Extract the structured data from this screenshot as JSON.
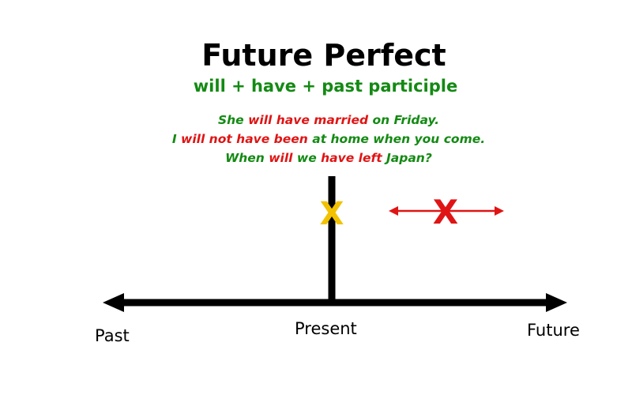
{
  "title": "Future Perfect",
  "formula": "will + have + past participle",
  "examples": [
    [
      {
        "text": "She ",
        "color": "green"
      },
      {
        "text": "will have married",
        "color": "red"
      },
      {
        "text": " on Friday.",
        "color": "green"
      }
    ],
    [
      {
        "text": "I ",
        "color": "green"
      },
      {
        "text": "will not have been",
        "color": "red"
      },
      {
        "text": " at home when you come.",
        "color": "green"
      }
    ],
    [
      {
        "text": "When ",
        "color": "green"
      },
      {
        "text": "will",
        "color": "red"
      },
      {
        "text": " we ",
        "color": "green"
      },
      {
        "text": "have left",
        "color": "red"
      },
      {
        "text": " Japan?",
        "color": "green"
      }
    ]
  ],
  "timeline": {
    "labels": {
      "past": "Past",
      "present": "Present",
      "future": "Future"
    },
    "markers": {
      "present_mark": "X",
      "future_mark": "X"
    }
  },
  "colors": {
    "title": "#000000",
    "green": "#138a13",
    "red": "#e01414",
    "yellow_mark": "#f2c200",
    "axis": "#000000"
  }
}
